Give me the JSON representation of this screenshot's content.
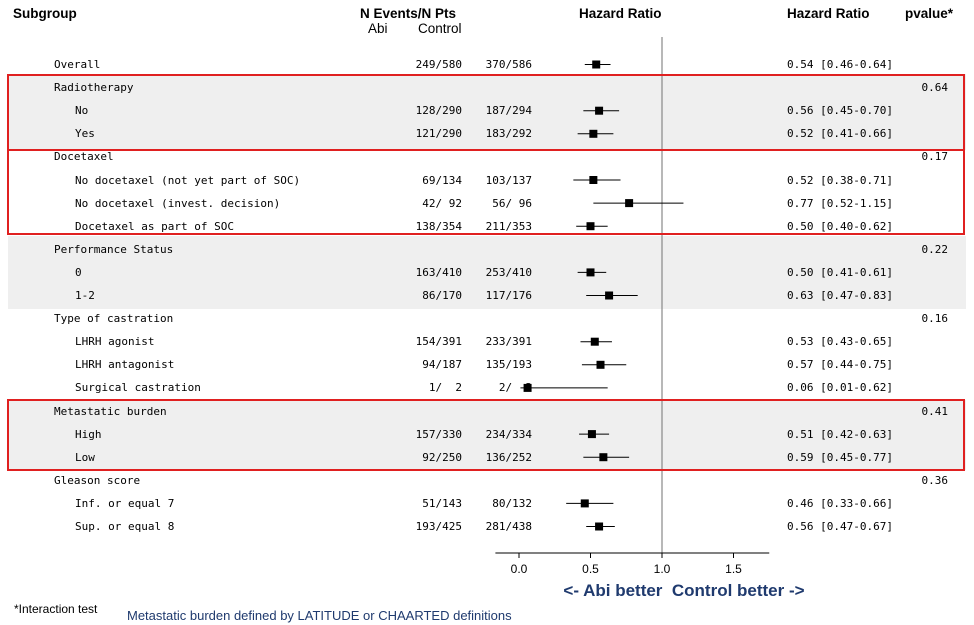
{
  "headers": {
    "subgroup": "Subgroup",
    "n_events": "N Events/N Pts",
    "abi": "Abi",
    "control": "Control",
    "hr_plot": "Hazard Ratio",
    "hr_text": "Hazard Ratio",
    "pvalue": "pvalue*"
  },
  "footer": {
    "interaction_note": "*Interaction test",
    "definition_note": "Metastatic burden defined by LATITUDE or CHAARTED definitions",
    "direction_label": "<- Abi better  Control better ->"
  },
  "chart_data": {
    "type": "forest",
    "xlim": [
      -0.2,
      1.75
    ],
    "reference_line": 1.0,
    "x_ticks": [
      "0.0",
      "0.5",
      "1.0",
      "1.5"
    ],
    "tick_values": [
      0.0,
      0.5,
      1.0,
      1.5
    ],
    "highlight_color": "#e02020",
    "band_color": "#efefef",
    "rows": [
      {
        "label": "Overall",
        "indent": false,
        "abi": "249/580",
        "control": "370/586",
        "hr": 0.54,
        "lo": 0.46,
        "hi": 0.64,
        "hr_text": "0.54 [0.46-0.64]",
        "pvalue": ""
      },
      {
        "label": "Radiotherapy",
        "indent": false,
        "abi": "",
        "control": "",
        "hr": null,
        "lo": null,
        "hi": null,
        "hr_text": "",
        "pvalue": "0.64"
      },
      {
        "label": "No",
        "indent": true,
        "abi": "128/290",
        "control": "187/294",
        "hr": 0.56,
        "lo": 0.45,
        "hi": 0.7,
        "hr_text": "0.56 [0.45-0.70]",
        "pvalue": ""
      },
      {
        "label": "Yes",
        "indent": true,
        "abi": "121/290",
        "control": "183/292",
        "hr": 0.52,
        "lo": 0.41,
        "hi": 0.66,
        "hr_text": "0.52 [0.41-0.66]",
        "pvalue": ""
      },
      {
        "label": "Docetaxel",
        "indent": false,
        "abi": "",
        "control": "",
        "hr": null,
        "lo": null,
        "hi": null,
        "hr_text": "",
        "pvalue": "0.17"
      },
      {
        "label": "No docetaxel (not yet part of SOC)",
        "indent": true,
        "abi": "69/134",
        "control": "103/137",
        "hr": 0.52,
        "lo": 0.38,
        "hi": 0.71,
        "hr_text": "0.52 [0.38-0.71]",
        "pvalue": ""
      },
      {
        "label": "No docetaxel (invest. decision)",
        "indent": true,
        "abi": "42/ 92",
        "control": "56/ 96",
        "hr": 0.77,
        "lo": 0.52,
        "hi": 1.15,
        "hr_text": "0.77 [0.52-1.15]",
        "pvalue": ""
      },
      {
        "label": "Docetaxel as part of SOC",
        "indent": true,
        "abi": "138/354",
        "control": "211/353",
        "hr": 0.5,
        "lo": 0.4,
        "hi": 0.62,
        "hr_text": "0.50 [0.40-0.62]",
        "pvalue": ""
      },
      {
        "label": "Performance Status",
        "indent": false,
        "abi": "",
        "control": "",
        "hr": null,
        "lo": null,
        "hi": null,
        "hr_text": "",
        "pvalue": "0.22"
      },
      {
        "label": "0",
        "indent": true,
        "abi": "163/410",
        "control": "253/410",
        "hr": 0.5,
        "lo": 0.41,
        "hi": 0.61,
        "hr_text": "0.50 [0.41-0.61]",
        "pvalue": ""
      },
      {
        "label": "1-2",
        "indent": true,
        "abi": "86/170",
        "control": "117/176",
        "hr": 0.63,
        "lo": 0.47,
        "hi": 0.83,
        "hr_text": "0.63 [0.47-0.83]",
        "pvalue": ""
      },
      {
        "label": "Type of castration",
        "indent": false,
        "abi": "",
        "control": "",
        "hr": null,
        "lo": null,
        "hi": null,
        "hr_text": "",
        "pvalue": "0.16"
      },
      {
        "label": "LHRH agonist",
        "indent": true,
        "abi": "154/391",
        "control": "233/391",
        "hr": 0.53,
        "lo": 0.43,
        "hi": 0.65,
        "hr_text": "0.53 [0.43-0.65]",
        "pvalue": ""
      },
      {
        "label": "LHRH antagonist",
        "indent": true,
        "abi": "94/187",
        "control": "135/193",
        "hr": 0.57,
        "lo": 0.44,
        "hi": 0.75,
        "hr_text": "0.57 [0.44-0.75]",
        "pvalue": ""
      },
      {
        "label": "Surgical castration",
        "indent": true,
        "abi": "1/  2",
        "control": "2/  2",
        "hr": 0.06,
        "lo": 0.01,
        "hi": 0.62,
        "hr_text": "0.06 [0.01-0.62]",
        "pvalue": ""
      },
      {
        "label": "Metastatic burden",
        "indent": false,
        "abi": "",
        "control": "",
        "hr": null,
        "lo": null,
        "hi": null,
        "hr_text": "",
        "pvalue": "0.41"
      },
      {
        "label": "High",
        "indent": true,
        "abi": "157/330",
        "control": "234/334",
        "hr": 0.51,
        "lo": 0.42,
        "hi": 0.63,
        "hr_text": "0.51 [0.42-0.63]",
        "pvalue": ""
      },
      {
        "label": "Low",
        "indent": true,
        "abi": "92/250",
        "control": "136/252",
        "hr": 0.59,
        "lo": 0.45,
        "hi": 0.77,
        "hr_text": "0.59 [0.45-0.77]",
        "pvalue": ""
      },
      {
        "label": "Gleason score",
        "indent": false,
        "abi": "",
        "control": "",
        "hr": null,
        "lo": null,
        "hi": null,
        "hr_text": "",
        "pvalue": "0.36"
      },
      {
        "label": "Inf. or equal 7",
        "indent": true,
        "abi": "51/143",
        "control": "80/132",
        "hr": 0.46,
        "lo": 0.33,
        "hi": 0.66,
        "hr_text": "0.46 [0.33-0.66]",
        "pvalue": ""
      },
      {
        "label": "Sup. or equal 8",
        "indent": true,
        "abi": "193/425",
        "control": "281/438",
        "hr": 0.56,
        "lo": 0.47,
        "hi": 0.67,
        "hr_text": "0.56 [0.47-0.67]",
        "pvalue": ""
      }
    ]
  }
}
